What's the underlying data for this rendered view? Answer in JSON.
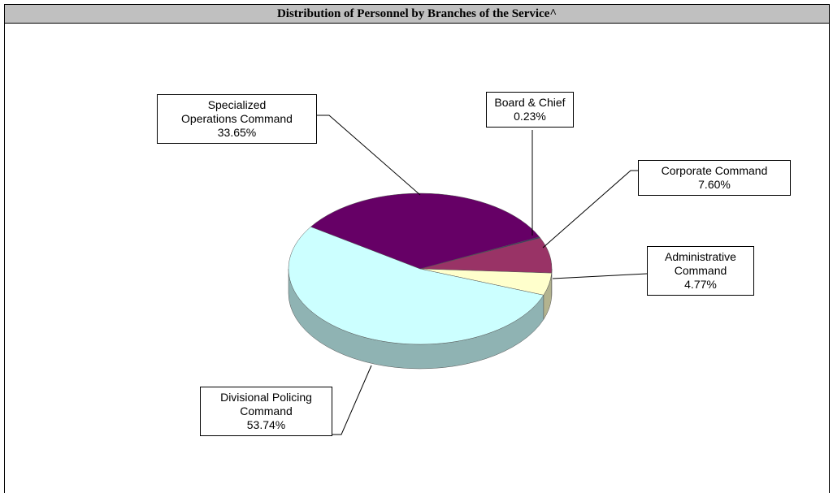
{
  "chart_data": {
    "type": "pie",
    "title": "Distribution of Personnel by Branches of the Service^",
    "categories": [
      "Board & Chief",
      "Corporate Command",
      "Administrative Command",
      "Divisional Policing Command",
      "Specialized Operations Command"
    ],
    "values": [
      0.23,
      7.6,
      4.77,
      53.74,
      33.65
    ],
    "value_labels": [
      "0.23%",
      "7.60%",
      "4.77%",
      "53.74%",
      "33.65%"
    ],
    "colors": [
      "#333366",
      "#993366",
      "#FFFFCC",
      "#CCFFFF",
      "#660066"
    ]
  }
}
